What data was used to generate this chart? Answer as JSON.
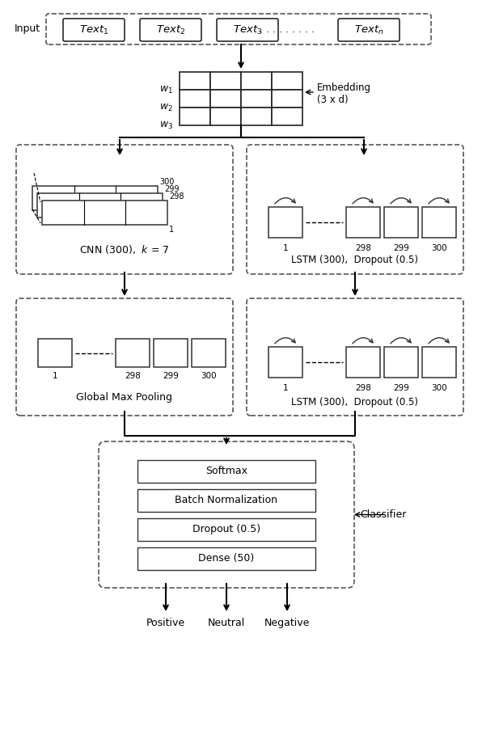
{
  "fig_width": 5.96,
  "fig_height": 9.14,
  "bg_color": "#ffffff",
  "input_texts": [
    "Text_1",
    "Text_2",
    "Text_3",
    "Text_n"
  ],
  "embedding_label": "Embedding\n(3 x d)",
  "cnn_label": "CNN (300),  k = 7",
  "lstm1_label": "LSTM (300),  Dropout (0.5)",
  "gmp_label": "Global Max Pooling",
  "lstm2_label": "LSTM (300),  Dropout (0.5)",
  "classifier_layers": [
    "Dense (50)",
    "Dropout (0.5)",
    "Batch Normalization",
    "Softmax"
  ],
  "classifier_label": "Classifier",
  "output_labels": [
    "Positive",
    "Neutral",
    "Negative"
  ],
  "box_color": "#ffffff",
  "box_edge_color": "#000000",
  "dashed_color": "#444444"
}
